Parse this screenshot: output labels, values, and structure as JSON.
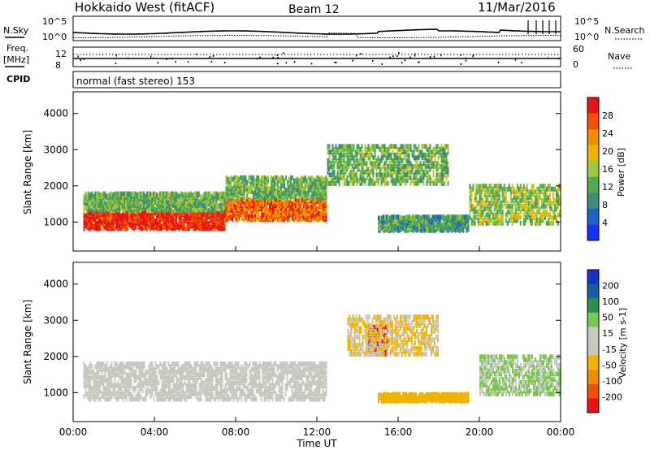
{
  "header": {
    "title": "Hokkaido West (fitACF)",
    "beam": "Beam 12",
    "date": "11/Mar/2016"
  },
  "noise_panel": {
    "left_label": "N.Sky",
    "right_label": "N.Search",
    "tick_top": "10^5",
    "tick_bottom": "10^0",
    "right_tick_top": "10^5",
    "right_tick_bottom": "10^0"
  },
  "freq_panel": {
    "left_label_1": "Freq.",
    "left_label_2": "[MHz]",
    "left_tick_top": "12",
    "left_tick_bottom": "8",
    "right_label": "Nave",
    "right_tick_top": "60",
    "right_tick_bottom": "0"
  },
  "cpid_panel": {
    "label": "CPID",
    "mode_text": "normal (fast stereo) 153"
  },
  "colors": {
    "power_scale": [
      "#1432ff",
      "#1e64c8",
      "#3c8c78",
      "#50aa50",
      "#a0c83c",
      "#f0b400",
      "#f08c00",
      "#f05000",
      "#e61414"
    ],
    "velocity_scale": [
      "#e61414",
      "#f05000",
      "#f08c00",
      "#f0b400",
      "#c8c8c0",
      "#c8c8c0",
      "#78c850",
      "#2d8c50",
      "#1e5aa0",
      "#1432c8"
    ]
  },
  "chart_data": [
    {
      "type": "heatmap",
      "quantity": "Power",
      "ylabel": "Slant Range [km]",
      "xlabel": "Time UT",
      "x_ticks": [
        "00:00",
        "04:00",
        "08:00",
        "12:00",
        "16:00",
        "20:00",
        "00:00"
      ],
      "y_ticks": [
        1000,
        2000,
        3000,
        4000
      ],
      "ylim": [
        200,
        4600
      ],
      "xlim_hours": [
        0,
        24
      ],
      "colorbar": {
        "label": "Power [dB]",
        "ticks": [
          "4",
          "8",
          "12",
          "16",
          "20",
          "24",
          "28"
        ],
        "range": [
          0,
          30
        ]
      },
      "features": [
        {
          "t_start": 0.5,
          "t_end": 7.5,
          "r_low": 750,
          "r_high": 1250,
          "value": 28
        },
        {
          "t_start": 0.5,
          "t_end": 7.5,
          "r_low": 1250,
          "r_high": 1750,
          "value": 12
        },
        {
          "t_start": 7.5,
          "t_end": 12.5,
          "r_low": 1000,
          "r_high": 1600,
          "value": 24
        },
        {
          "t_start": 7.5,
          "t_end": 12.5,
          "r_low": 1600,
          "r_high": 2200,
          "value": 12
        },
        {
          "t_start": 12.5,
          "t_end": 18.5,
          "r_low": 2000,
          "r_high": 3100,
          "value": 12
        },
        {
          "t_start": 15.0,
          "t_end": 19.5,
          "r_low": 700,
          "r_high": 1100,
          "value": 10
        },
        {
          "t_start": 19.5,
          "t_end": 24.0,
          "r_low": 900,
          "r_high": 2000,
          "value": 14
        }
      ]
    },
    {
      "type": "heatmap",
      "quantity": "Velocity",
      "ylabel": "Slant Range [km]",
      "xlabel": "Time UT",
      "x_ticks": [
        "00:00",
        "04:00",
        "08:00",
        "12:00",
        "16:00",
        "20:00",
        "00:00"
      ],
      "y_ticks": [
        1000,
        2000,
        3000,
        4000
      ],
      "ylim": [
        200,
        4600
      ],
      "xlim_hours": [
        0,
        24
      ],
      "colorbar": {
        "label": "Velocity [m s-1]",
        "ticks": [
          "200",
          "100",
          "50",
          "15",
          "-15",
          "-50",
          "-100",
          "-200"
        ],
        "range": [
          -250,
          250
        ]
      },
      "features": [
        {
          "t_start": 0.5,
          "t_end": 12.5,
          "r_low": 750,
          "r_high": 1800,
          "value": 0
        },
        {
          "t_start": 14.5,
          "t_end": 15.5,
          "r_low": 2000,
          "r_high": 2800,
          "value": -220
        },
        {
          "t_start": 13.5,
          "t_end": 18.0,
          "r_low": 2000,
          "r_high": 3100,
          "value": -50
        },
        {
          "t_start": 15.0,
          "t_end": 19.5,
          "r_low": 700,
          "r_high": 900,
          "value": -60
        },
        {
          "t_start": 20.0,
          "t_end": 24.0,
          "r_low": 900,
          "r_high": 2000,
          "value": 50
        }
      ]
    }
  ]
}
